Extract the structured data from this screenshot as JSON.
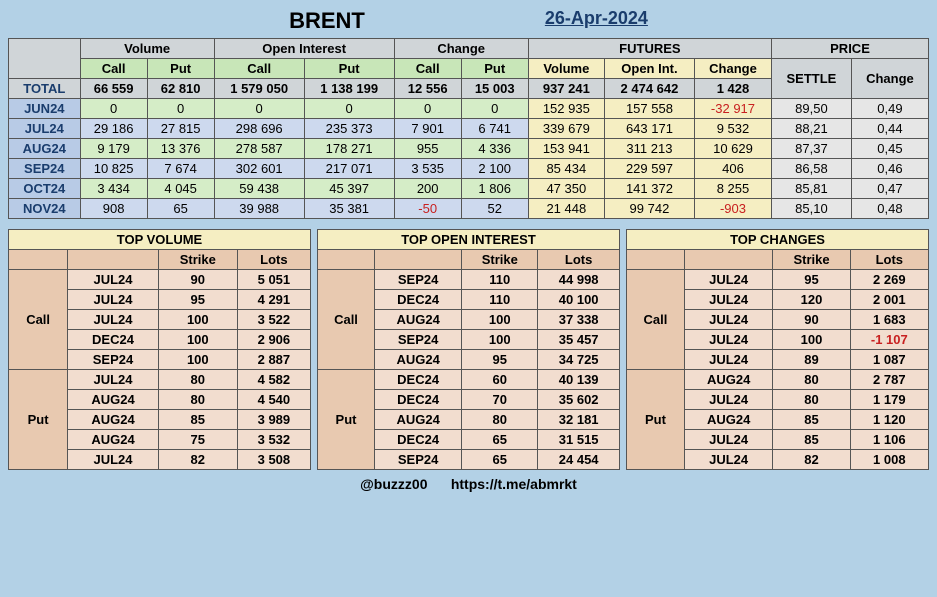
{
  "header": {
    "title": "BRENT",
    "date": "26-Apr-2024"
  },
  "mainTable": {
    "groupHeaders": [
      "Volume",
      "Open Interest",
      "Change",
      "FUTURES",
      "PRICE"
    ],
    "subHeaders": [
      "Call",
      "Put",
      "Call",
      "Put",
      "Call",
      "Put",
      "Volume",
      "Open Int.",
      "Change",
      "SETTLE",
      "Change"
    ],
    "totalLabel": "TOTAL",
    "total": [
      "66 559",
      "62 810",
      "1 579 050",
      "1 138 199",
      "12 556",
      "15 003",
      "937 241",
      "2 474 642",
      "1 428",
      "",
      ""
    ],
    "rows": [
      {
        "label": "JUN24",
        "cls": "row-green",
        "cells": [
          "0",
          "0",
          "0",
          "0",
          "0",
          "0",
          "152 935",
          "157 558",
          "-32 917",
          "89,50",
          "0,49"
        ],
        "neg": [
          8
        ]
      },
      {
        "label": "JUL24",
        "cls": "row-blue",
        "cells": [
          "29 186",
          "27 815",
          "298 696",
          "235 373",
          "7 901",
          "6 741",
          "339 679",
          "643 171",
          "9 532",
          "88,21",
          "0,44"
        ],
        "neg": []
      },
      {
        "label": "AUG24",
        "cls": "row-green",
        "cells": [
          "9 179",
          "13 376",
          "278 587",
          "178 271",
          "955",
          "4 336",
          "153 941",
          "311 213",
          "10 629",
          "87,37",
          "0,45"
        ],
        "neg": []
      },
      {
        "label": "SEP24",
        "cls": "row-blue",
        "cells": [
          "10 825",
          "7 674",
          "302 601",
          "217 071",
          "3 535",
          "2 100",
          "85 434",
          "229 597",
          "406",
          "86,58",
          "0,46"
        ],
        "neg": []
      },
      {
        "label": "OCT24",
        "cls": "row-green",
        "cells": [
          "3 434",
          "4 045",
          "59 438",
          "45 397",
          "200",
          "1 806",
          "47 350",
          "141 372",
          "8 255",
          "85,81",
          "0,47"
        ],
        "neg": []
      },
      {
        "label": "NOV24",
        "cls": "row-blue",
        "cells": [
          "908",
          "65",
          "39 988",
          "35 381",
          "-50",
          "52",
          "21 448",
          "99 742",
          "-903",
          "85,10",
          "0,48"
        ],
        "neg": [
          4,
          8
        ]
      }
    ]
  },
  "panels": [
    {
      "title": "TOP VOLUME",
      "cols": [
        "",
        "Strike",
        "Lots"
      ],
      "call": [
        [
          "JUL24",
          "90",
          "5 051"
        ],
        [
          "JUL24",
          "95",
          "4 291"
        ],
        [
          "JUL24",
          "100",
          "3 522"
        ],
        [
          "DEC24",
          "100",
          "2 906"
        ],
        [
          "SEP24",
          "100",
          "2 887"
        ]
      ],
      "put": [
        [
          "JUL24",
          "80",
          "4 582"
        ],
        [
          "AUG24",
          "80",
          "4 540"
        ],
        [
          "AUG24",
          "85",
          "3 989"
        ],
        [
          "AUG24",
          "75",
          "3 532"
        ],
        [
          "JUL24",
          "82",
          "3 508"
        ]
      ],
      "neg": {}
    },
    {
      "title": "TOP OPEN INTEREST",
      "cols": [
        "",
        "Strike",
        "Lots"
      ],
      "call": [
        [
          "SEP24",
          "110",
          "44 998"
        ],
        [
          "DEC24",
          "110",
          "40 100"
        ],
        [
          "AUG24",
          "100",
          "37 338"
        ],
        [
          "SEP24",
          "100",
          "35 457"
        ],
        [
          "AUG24",
          "95",
          "34 725"
        ]
      ],
      "put": [
        [
          "DEC24",
          "60",
          "40 139"
        ],
        [
          "DEC24",
          "70",
          "35 602"
        ],
        [
          "AUG24",
          "80",
          "32 181"
        ],
        [
          "DEC24",
          "65",
          "31 515"
        ],
        [
          "SEP24",
          "65",
          "24 454"
        ]
      ],
      "neg": {}
    },
    {
      "title": "TOP CHANGES",
      "cols": [
        "",
        "Strike",
        "Lots"
      ],
      "call": [
        [
          "JUL24",
          "95",
          "2 269"
        ],
        [
          "JUL24",
          "120",
          "2 001"
        ],
        [
          "JUL24",
          "90",
          "1 683"
        ],
        [
          "JUL24",
          "100",
          "-1 107"
        ],
        [
          "JUL24",
          "89",
          "1 087"
        ]
      ],
      "put": [
        [
          "AUG24",
          "80",
          "2 787"
        ],
        [
          "JUL24",
          "80",
          "1 179"
        ],
        [
          "AUG24",
          "85",
          "1 120"
        ],
        [
          "JUL24",
          "85",
          "1 106"
        ],
        [
          "JUL24",
          "82",
          "1 008"
        ]
      ],
      "neg": {
        "call": [
          3
        ]
      }
    }
  ],
  "footer": {
    "handle": "@buzzz00",
    "link": "https://t.me/abmrkt"
  },
  "labels": {
    "call": "Call",
    "put": "Put"
  }
}
